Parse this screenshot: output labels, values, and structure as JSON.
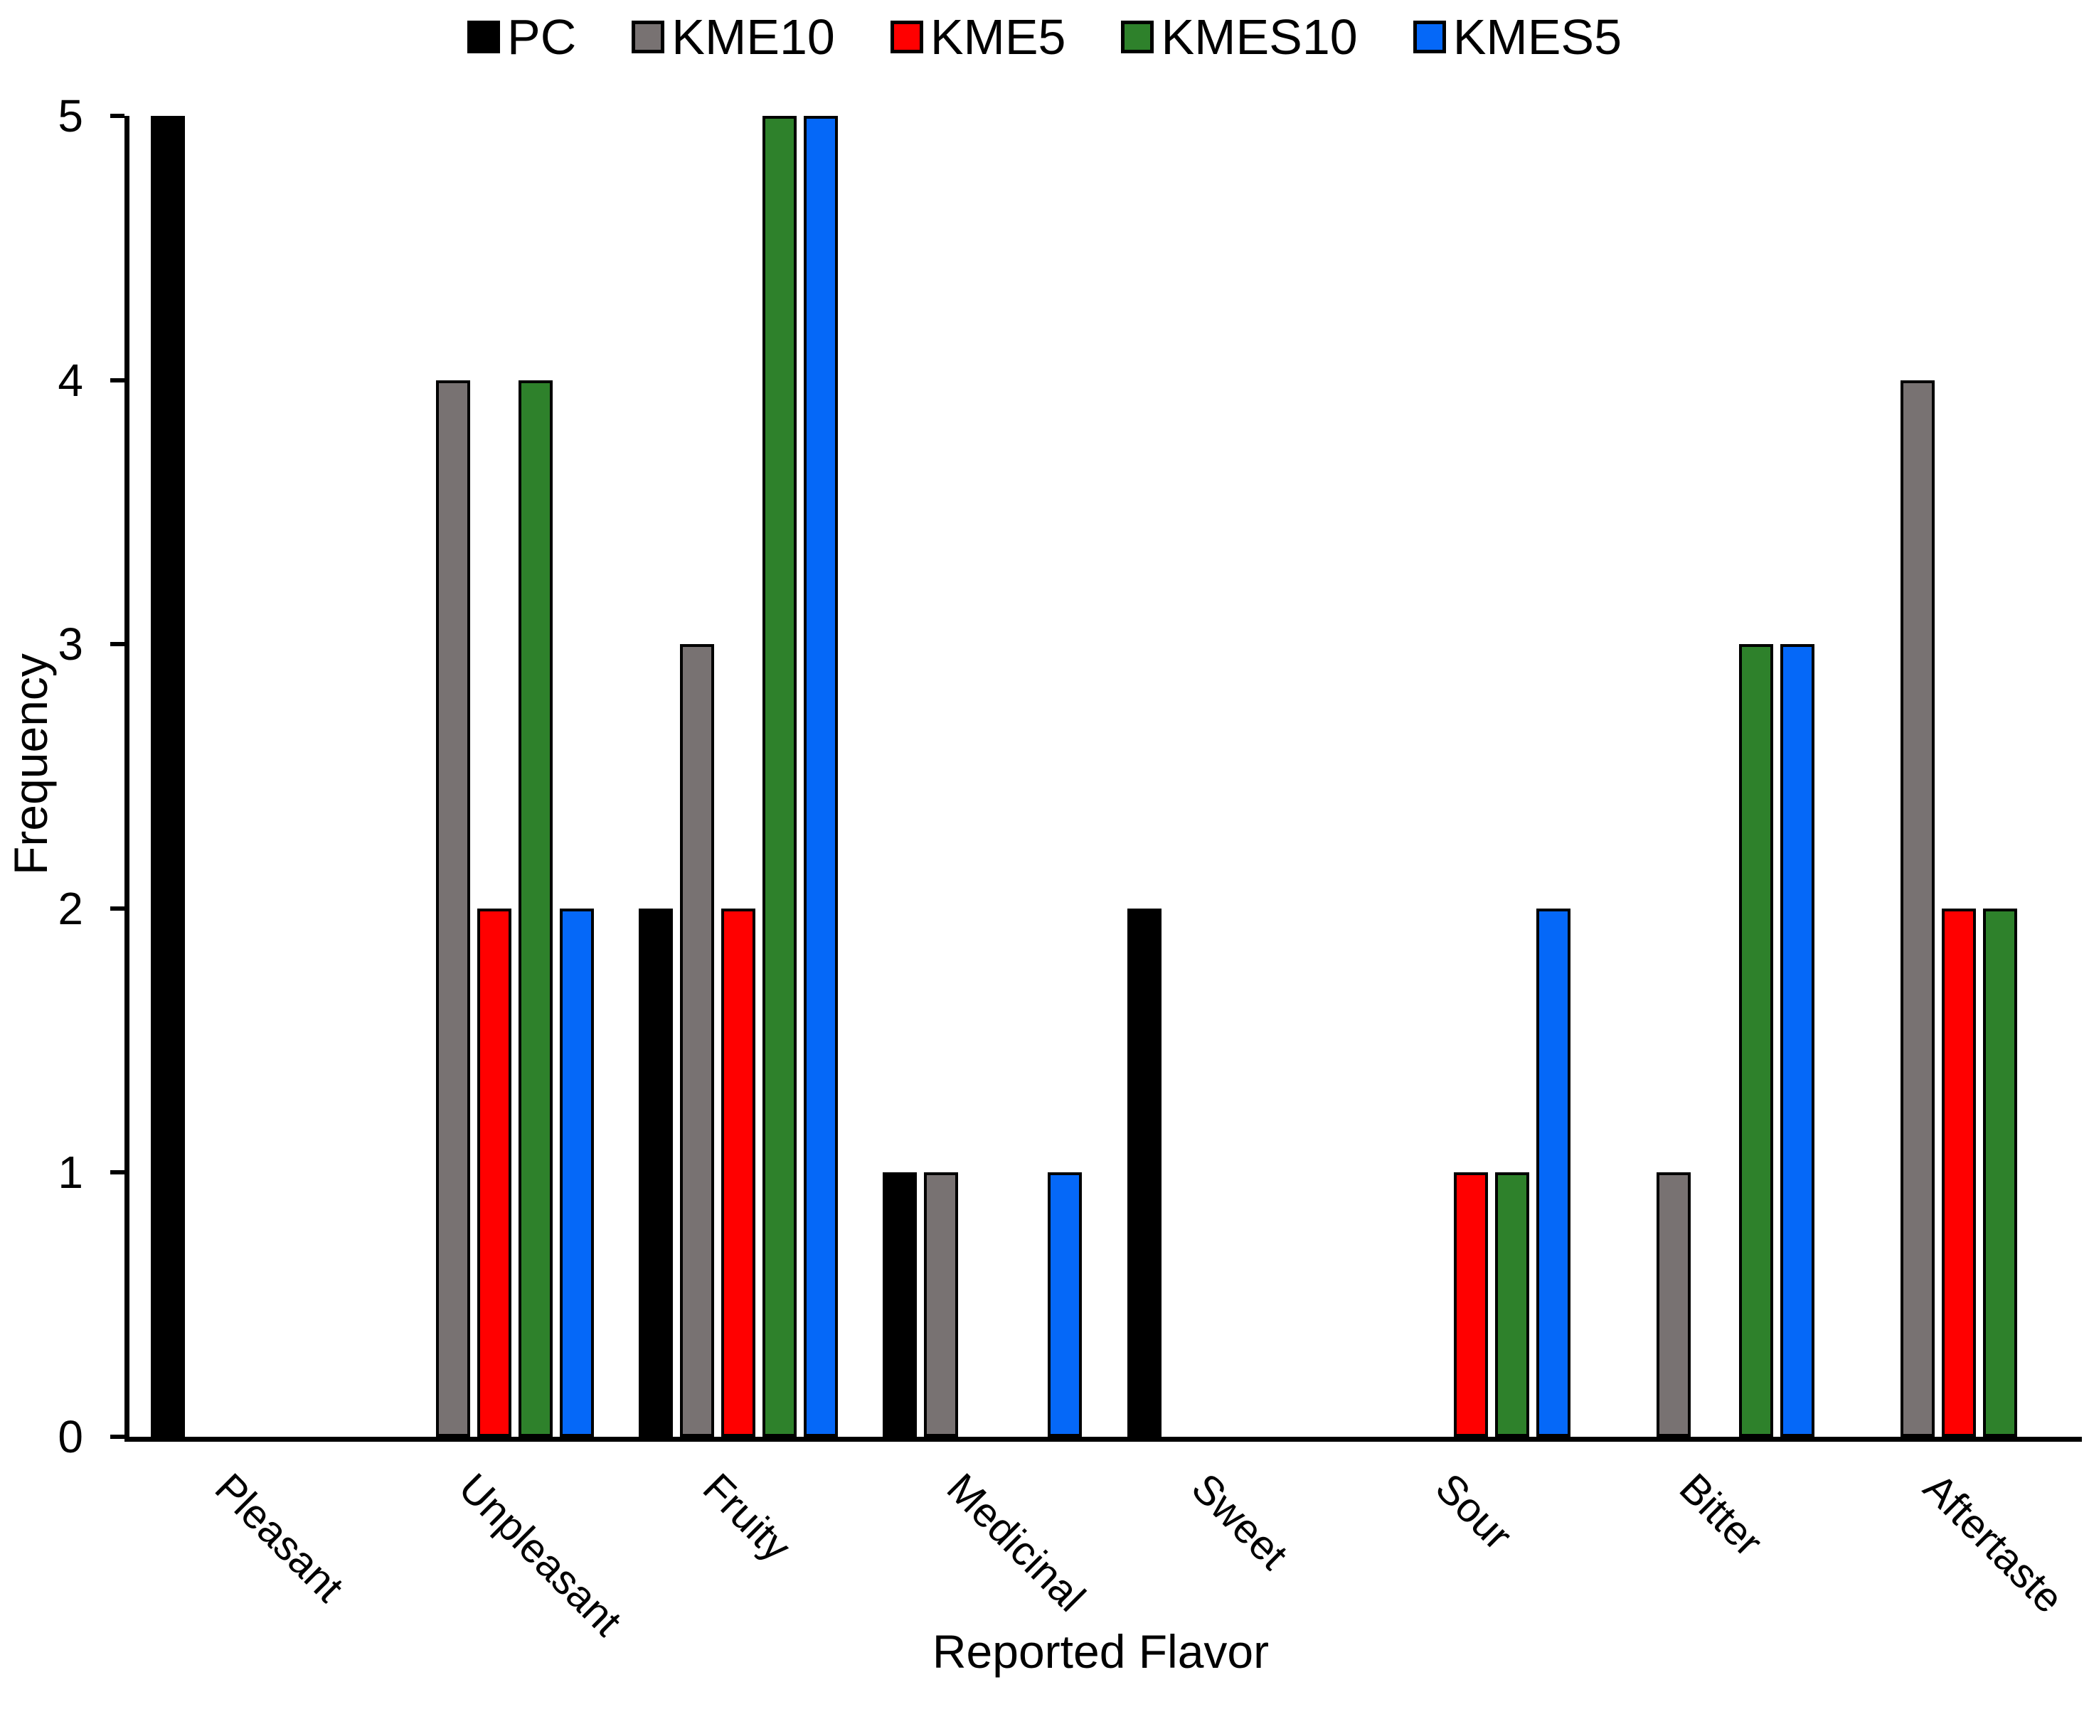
{
  "chart_data": {
    "type": "bar",
    "title": "",
    "xlabel": "Reported Flavor",
    "ylabel": "Frequency",
    "categories": [
      "Pleasant",
      "Unpleasant",
      "Fruity",
      "Medicinal",
      "Sweet",
      "Sour",
      "Bitter",
      "Aftertaste"
    ],
    "series": [
      {
        "name": "PC",
        "color": "#000000",
        "values": [
          5,
          0,
          2,
          1,
          2,
          0,
          0,
          0
        ]
      },
      {
        "name": "KME10",
        "color": "#787272",
        "values": [
          0,
          4,
          3,
          1,
          0,
          0,
          1,
          4
        ]
      },
      {
        "name": "KME5",
        "color": "#FF0000",
        "values": [
          0,
          2,
          2,
          0,
          0,
          1,
          0,
          2
        ]
      },
      {
        "name": "KMES10",
        "color": "#2E812B",
        "values": [
          0,
          4,
          5,
          0,
          0,
          1,
          3,
          2
        ]
      },
      {
        "name": "KMES5",
        "color": "#0568F8",
        "values": [
          0,
          2,
          5,
          1,
          0,
          2,
          3,
          0
        ]
      }
    ],
    "ylim": [
      0,
      5
    ],
    "yticks": [
      0,
      1,
      2,
      3,
      4,
      5
    ],
    "legend_position": "top",
    "grid": false,
    "bar_outline_color": "#000000",
    "background_color": "#FFFFFF"
  }
}
